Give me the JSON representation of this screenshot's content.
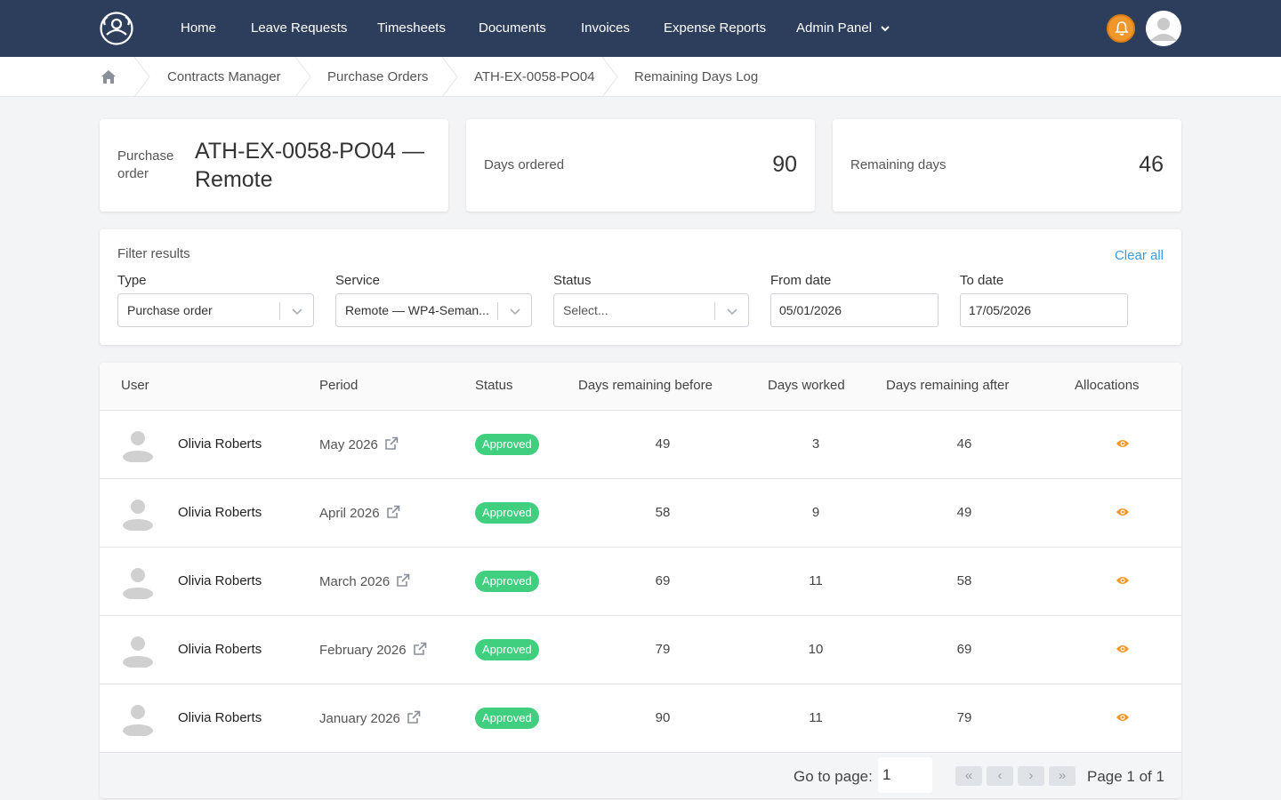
{
  "nav": {
    "items": [
      "Home",
      "Leave Requests",
      "Timesheets",
      "Documents",
      "Invoices",
      "Expense Reports",
      "Admin Panel"
    ],
    "logo_icon": "user-circle-logo-icon",
    "bell_icon": "bell-icon",
    "bell_color": "#f0962a",
    "bg_color": "#2c3e5c"
  },
  "breadcrumb": {
    "home_icon": "home-icon",
    "items": [
      "Contracts Manager",
      "Purchase Orders",
      "ATH-EX-0058-PO04",
      "Remaining Days Log"
    ]
  },
  "summary": {
    "po_label": "Purchase order",
    "po_title": "ATH-EX-0058-PO04 — Remote",
    "days_ordered_label": "Days ordered",
    "days_ordered_value": "90",
    "remaining_label": "Remaining days",
    "remaining_value": "46"
  },
  "filters": {
    "title": "Filter results",
    "clear_all": "Clear all",
    "type_label": "Type",
    "type_value": "Purchase order",
    "service_label": "Service",
    "service_value": "Remote — WP4-Seman...",
    "status_label": "Status",
    "status_placeholder": "Select...",
    "from_label": "From date",
    "from_value": "05/01/2026",
    "to_label": "To date",
    "to_value": "17/05/2026"
  },
  "table": {
    "headers": [
      "User",
      "Period",
      "Status",
      "Days remaining before",
      "Days worked",
      "Days remaining after",
      "Allocations"
    ],
    "rows": [
      {
        "user": "Olivia Roberts",
        "period": "May 2026",
        "status": "Approved",
        "before": "49",
        "worked": "3",
        "after": "46"
      },
      {
        "user": "Olivia Roberts",
        "period": "April 2026",
        "status": "Approved",
        "before": "58",
        "worked": "9",
        "after": "49"
      },
      {
        "user": "Olivia Roberts",
        "period": "March 2026",
        "status": "Approved",
        "before": "69",
        "worked": "11",
        "after": "58"
      },
      {
        "user": "Olivia Roberts",
        "period": "February 2026",
        "status": "Approved",
        "before": "79",
        "worked": "10",
        "after": "69"
      },
      {
        "user": "Olivia Roberts",
        "period": "January 2026",
        "status": "Approved",
        "before": "90",
        "worked": "11",
        "after": "79"
      }
    ],
    "status_color": "#3fcf7f",
    "eye_color": "#f0962a"
  },
  "pagination": {
    "goto_label": "Go to page:",
    "goto_value": "1",
    "first": "«",
    "prev": "‹",
    "next": "›",
    "last": "»",
    "page_info": "Page 1 of 1"
  }
}
